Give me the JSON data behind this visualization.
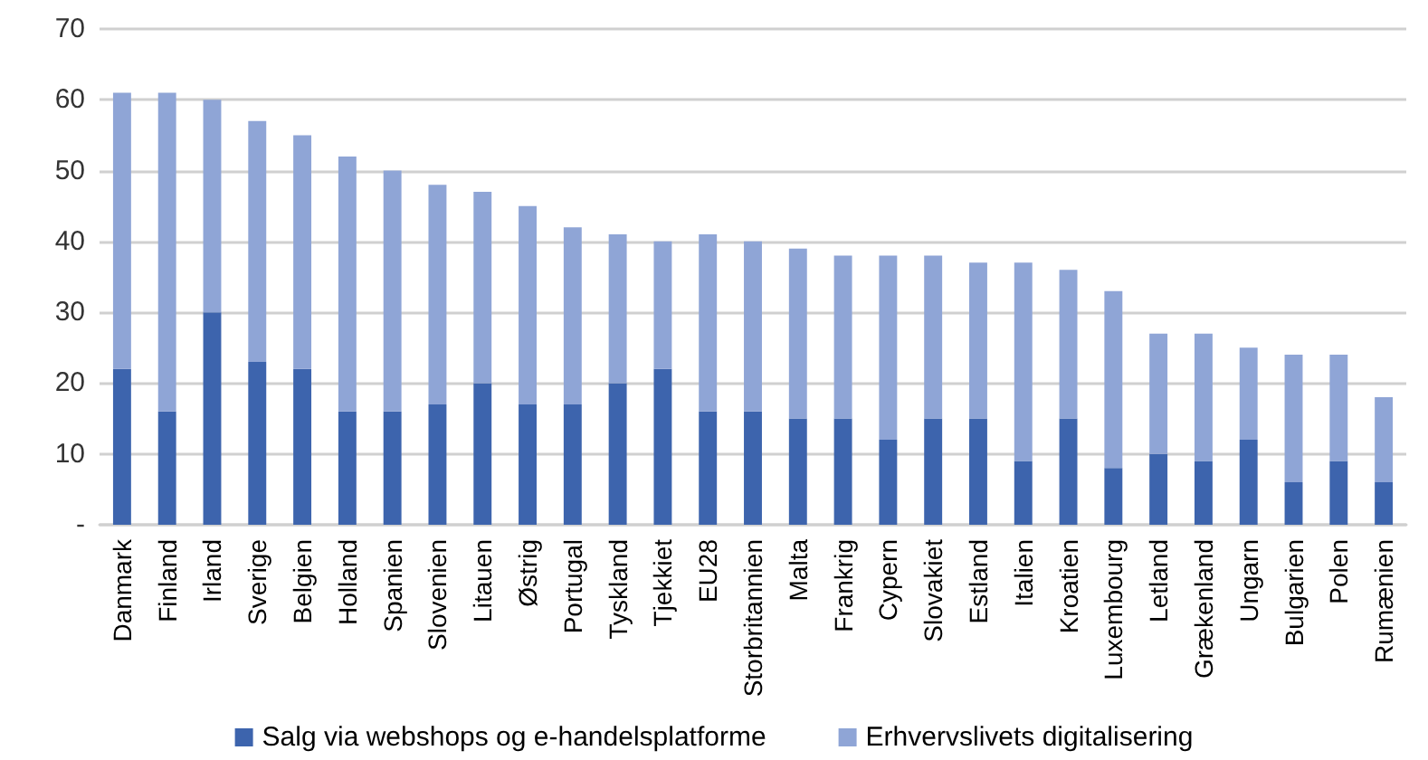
{
  "chart_data": {
    "type": "bar",
    "stacked": true,
    "categories": [
      "Danmark",
      "Finland",
      "Irland",
      "Sverige",
      "Belgien",
      "Holland",
      "Spanien",
      "Slovenien",
      "Litauen",
      "Østrig",
      "Portugal",
      "Tyskland",
      "Tjekkiet",
      "EU28",
      "Storbritannien",
      "Malta",
      "Frankrig",
      "Cypern",
      "Slovakiet",
      "Estland",
      "Italien",
      "Kroatien",
      "Luxembourg",
      "Letland",
      "Grækenland",
      "Ungarn",
      "Bulgarien",
      "Polen",
      "Rumænien"
    ],
    "series": [
      {
        "name": "Salg via webshops og e-handelsplatforme",
        "color": "#3d64ad",
        "values": [
          22,
          16,
          30,
          23,
          22,
          16,
          16,
          17,
          20,
          17,
          17,
          20,
          22,
          16,
          16,
          15,
          15,
          12,
          15,
          15,
          9,
          15,
          8,
          10,
          9,
          12,
          6,
          9,
          6
        ]
      },
      {
        "name": "Erhvervslivets digitalisering",
        "color": "#8fa5d6",
        "values": [
          39,
          45,
          30,
          34,
          33,
          36,
          34,
          31,
          27,
          28,
          25,
          21,
          18,
          25,
          24,
          24,
          23,
          26,
          23,
          22,
          28,
          21,
          25,
          17,
          18,
          13,
          18,
          15,
          12
        ]
      }
    ],
    "ylim": [
      0,
      70
    ],
    "yticks": [
      {
        "value": 0,
        "label": "-"
      },
      10,
      20,
      30,
      40,
      50,
      60,
      70
    ],
    "grid": "y",
    "legend": "bottom"
  }
}
